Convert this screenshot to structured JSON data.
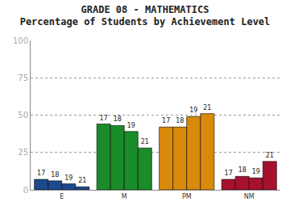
{
  "chart_data": {
    "type": "bar",
    "title": "GRADE 08 - MATHEMATICS",
    "subtitle": "Percentage of Students by Achievement Level",
    "categories": [
      "E",
      "M",
      "PM",
      "NM"
    ],
    "colors": [
      "#1c4a8c",
      "#1a8c2a",
      "#d98a0a",
      "#a6122e"
    ],
    "series": [
      {
        "name": "17",
        "values": [
          7,
          44,
          42,
          7
        ]
      },
      {
        "name": "18",
        "values": [
          6,
          43,
          42,
          9
        ]
      },
      {
        "name": "19",
        "values": [
          4,
          39,
          49,
          8
        ]
      },
      {
        "name": "21",
        "values": [
          2,
          28,
          51,
          19
        ]
      }
    ],
    "ylim": [
      0,
      100
    ],
    "yticks": [
      0,
      25,
      50,
      75,
      100
    ],
    "grid": true
  }
}
